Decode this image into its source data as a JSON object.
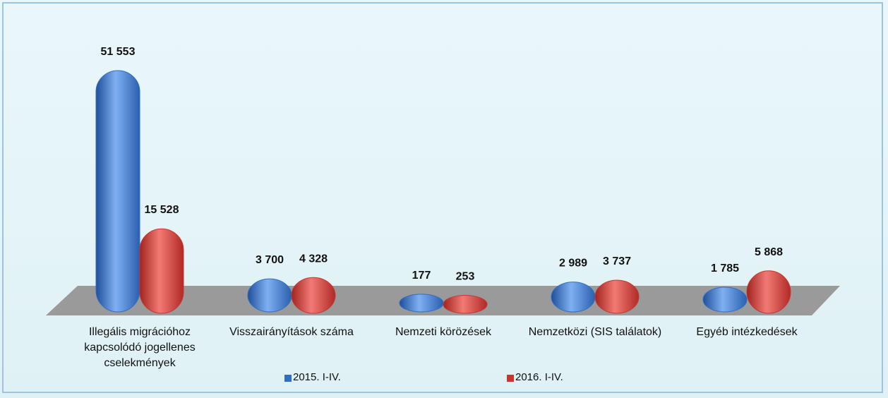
{
  "chart_data": {
    "type": "bar3d",
    "categories": [
      "Illegális migrációhoz kapcsolódó jogellenes cselekmények",
      "Visszairányítások száma",
      "Nemzeti körözések",
      "Nemzetközi (SIS találatok)",
      "Egyéb intézkedések"
    ],
    "series": [
      {
        "name": "2015. I-IV.",
        "color": "#2f6fc2",
        "values": [
          51553,
          3700,
          177,
          2989,
          1785
        ],
        "value_labels": [
          "51 553",
          "3 700",
          "177",
          "2 989",
          "1 785"
        ]
      },
      {
        "name": "2016. I-IV.",
        "color": "#c83632",
        "values": [
          15528,
          4328,
          253,
          3737,
          5868
        ],
        "value_labels": [
          "15 528",
          "4 328",
          "253",
          "3 737",
          "5 868"
        ]
      }
    ]
  }
}
